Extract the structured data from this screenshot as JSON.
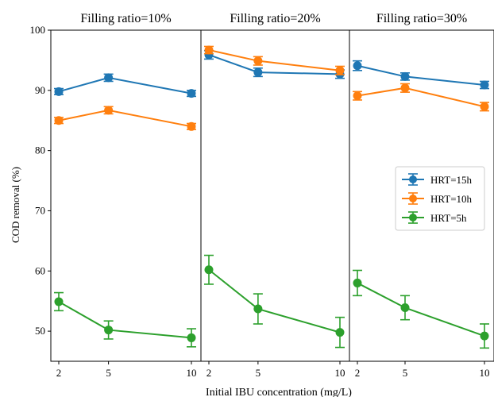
{
  "chart_data": {
    "type": "line",
    "ylabel": "COD removal (%)",
    "xlabel": "Initial IBU concentration (mg/L)",
    "ylim": [
      45,
      100
    ],
    "yticks": [
      50,
      60,
      70,
      80,
      90,
      100
    ],
    "xticks": [
      2,
      5,
      10
    ],
    "legend_position": "right",
    "colors": {
      "HRT=15h": "#1f77b4",
      "HRT=10h": "#ff7f0e",
      "HRT=5h": "#2ca02c"
    },
    "legend": [
      "HRT=15h",
      "HRT=10h",
      "HRT=5h"
    ],
    "panels": [
      {
        "title": "Filling ratio=10%",
        "series": [
          {
            "name": "HRT=15h",
            "values": [
              89.8,
              92.1,
              89.5
            ],
            "errors": [
              0.5,
              0.6,
              0.5
            ]
          },
          {
            "name": "HRT=10h",
            "values": [
              85.0,
              86.7,
              84.0
            ],
            "errors": [
              0.5,
              0.6,
              0.5
            ]
          },
          {
            "name": "HRT=5h",
            "values": [
              54.9,
              50.2,
              48.9
            ],
            "errors": [
              1.5,
              1.5,
              1.5
            ]
          }
        ]
      },
      {
        "title": "Filling ratio=20%",
        "series": [
          {
            "name": "HRT=15h",
            "values": [
              95.9,
              93.0,
              92.7
            ],
            "errors": [
              0.7,
              0.7,
              0.7
            ]
          },
          {
            "name": "HRT=10h",
            "values": [
              96.7,
              94.9,
              93.3
            ],
            "errors": [
              0.6,
              0.7,
              0.7
            ]
          },
          {
            "name": "HRT=5h",
            "values": [
              60.2,
              53.7,
              49.8
            ],
            "errors": [
              2.4,
              2.5,
              2.5
            ]
          }
        ]
      },
      {
        "title": "Filling ratio=30%",
        "series": [
          {
            "name": "HRT=15h",
            "values": [
              94.1,
              92.3,
              90.9
            ],
            "errors": [
              0.8,
              0.6,
              0.6
            ]
          },
          {
            "name": "HRT=10h",
            "values": [
              89.1,
              90.4,
              87.3
            ],
            "errors": [
              0.7,
              0.7,
              0.7
            ]
          },
          {
            "name": "HRT=5h",
            "values": [
              58.0,
              53.9,
              49.2
            ],
            "errors": [
              2.1,
              2.0,
              2.0
            ]
          }
        ]
      }
    ]
  }
}
